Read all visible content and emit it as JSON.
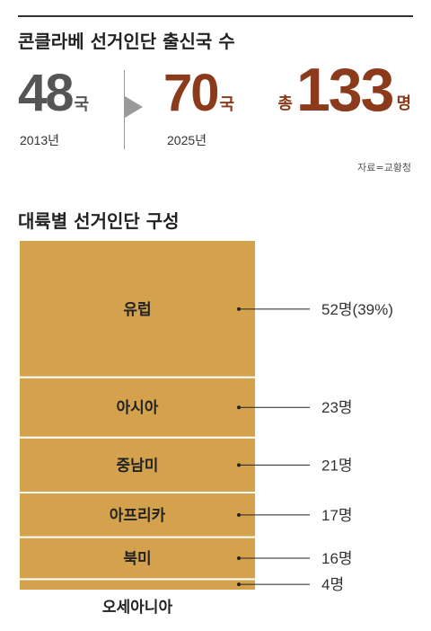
{
  "header": {
    "title": "콘클라베 선거인단 출신국 수",
    "before": {
      "number": "48",
      "unit": "국",
      "year": "2013년"
    },
    "after": {
      "number": "70",
      "unit": "국",
      "year": "2025년"
    },
    "total": {
      "prefix": "총",
      "number": "133",
      "unit": "명"
    },
    "source": "자료=교황청"
  },
  "section_title": "대륙별 선거인단 구성",
  "colors": {
    "bar": "#d4a24c",
    "bar_divider": "#ffffff",
    "brown": "#8b3a1c",
    "line": "#222222"
  },
  "chart_data": {
    "type": "bar",
    "stacked": true,
    "title": "대륙별 선거인단 구성",
    "categories": [
      "유럽",
      "아시아",
      "중남미",
      "아프리카",
      "북미",
      "오세아니아"
    ],
    "values": [
      52,
      23,
      21,
      17,
      16,
      4
    ],
    "value_labels": [
      "52명(39%)",
      "23명",
      "21명",
      "17명",
      "16명",
      "4명"
    ],
    "total": 133
  }
}
